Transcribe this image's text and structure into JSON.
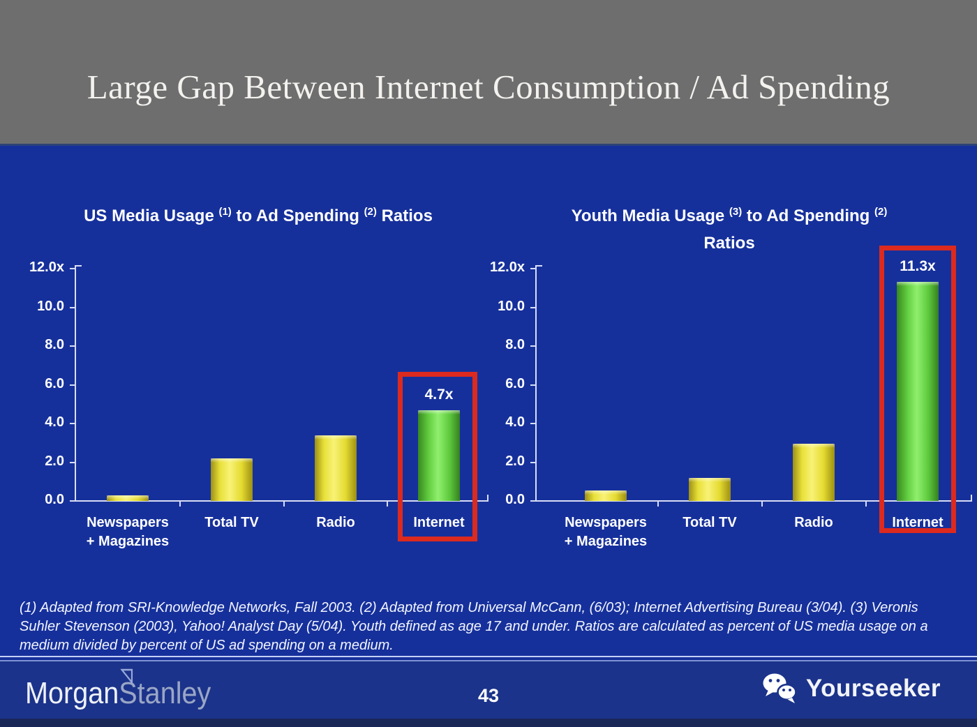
{
  "header": {
    "title": "Large Gap Between Internet Consumption / Ad Spending"
  },
  "chart_data": [
    {
      "type": "bar",
      "title": "US Media Usage (1) to Ad Spending (2) Ratios",
      "title_segments": [
        {
          "text": "US Media Usage "
        },
        {
          "text": "(1)",
          "sup": true
        },
        {
          "text": " to Ad Spending "
        },
        {
          "text": "(2)",
          "sup": true
        },
        {
          "text": " Ratios"
        }
      ],
      "categories": [
        "Newspapers + Magazines",
        "Total TV",
        "Radio",
        "Internet"
      ],
      "category_lines": [
        [
          "Newspapers",
          "+ Magazines"
        ],
        [
          "Total TV"
        ],
        [
          "Radio"
        ],
        [
          "Internet"
        ]
      ],
      "values": [
        0.3,
        2.2,
        3.4,
        4.7
      ],
      "bar_styles": [
        "yellow",
        "yellow",
        "yellow",
        "green"
      ],
      "highlight": {
        "index": 3,
        "label": "4.7x"
      },
      "ylim": [
        0,
        12
      ],
      "ytick_labels": [
        "12.0x",
        "10.0",
        "8.0",
        "6.0",
        "4.0",
        "2.0",
        "0.0"
      ],
      "xlabel": "",
      "ylabel": "",
      "grid": false,
      "legend": null
    },
    {
      "type": "bar",
      "title": "Youth Media Usage (3) to Ad Spending (2) Ratios",
      "title_segments": [
        {
          "text": "Youth Media Usage "
        },
        {
          "text": "(3)",
          "sup": true
        },
        {
          "text": " to Ad Spending "
        },
        {
          "text": "(2)",
          "sup": true
        },
        {
          "text": " Ratios"
        }
      ],
      "categories": [
        "Newspapers + Magazines",
        "Total TV",
        "Radio",
        "Internet"
      ],
      "category_lines": [
        [
          "Newspapers",
          "+ Magazines"
        ],
        [
          "Total TV"
        ],
        [
          "Radio"
        ],
        [
          "Internet"
        ]
      ],
      "values": [
        0.55,
        1.2,
        2.95,
        11.3
      ],
      "bar_styles": [
        "yellow",
        "yellow",
        "yellow",
        "green"
      ],
      "highlight": {
        "index": 3,
        "label": "11.3x"
      },
      "ylim": [
        0,
        12
      ],
      "ytick_labels": [
        "12.0x",
        "10.0",
        "8.0",
        "6.0",
        "4.0",
        "2.0",
        "0.0"
      ],
      "xlabel": "",
      "ylabel": "",
      "grid": false,
      "legend": null
    }
  ],
  "footnote": {
    "text": "(1) Adapted from SRI-Knowledge Networks, Fall 2003.  (2) Adapted from Universal McCann, (6/03); Internet Advertising Bureau (3/04). (3) Veronis Suhler Stevenson (2003), Yahoo! Analyst Day (5/04).  Youth defined as age 17 and under.  Ratios are calculated as percent of US media usage on a medium divided by percent of US ad spending on a medium."
  },
  "footer": {
    "brand_morgan": "Morgan",
    "brand_stanley": "Stanley",
    "page_number": "43",
    "partner_name": "Yourseeker",
    "icons": {
      "partner_logo": "wechat-chat-bubbles-icon",
      "brand_mark": "morgan-stanley-triangle-icon"
    }
  },
  "palette": {
    "header_gray": "#6e6e6e",
    "slide_blue": "#16309b",
    "footer_blue": "#1b338a",
    "bar_yellow": "#f0e83e",
    "bar_green": "#66d943",
    "highlight_red": "#dc2a1e",
    "axis_light": "#d8def5"
  }
}
